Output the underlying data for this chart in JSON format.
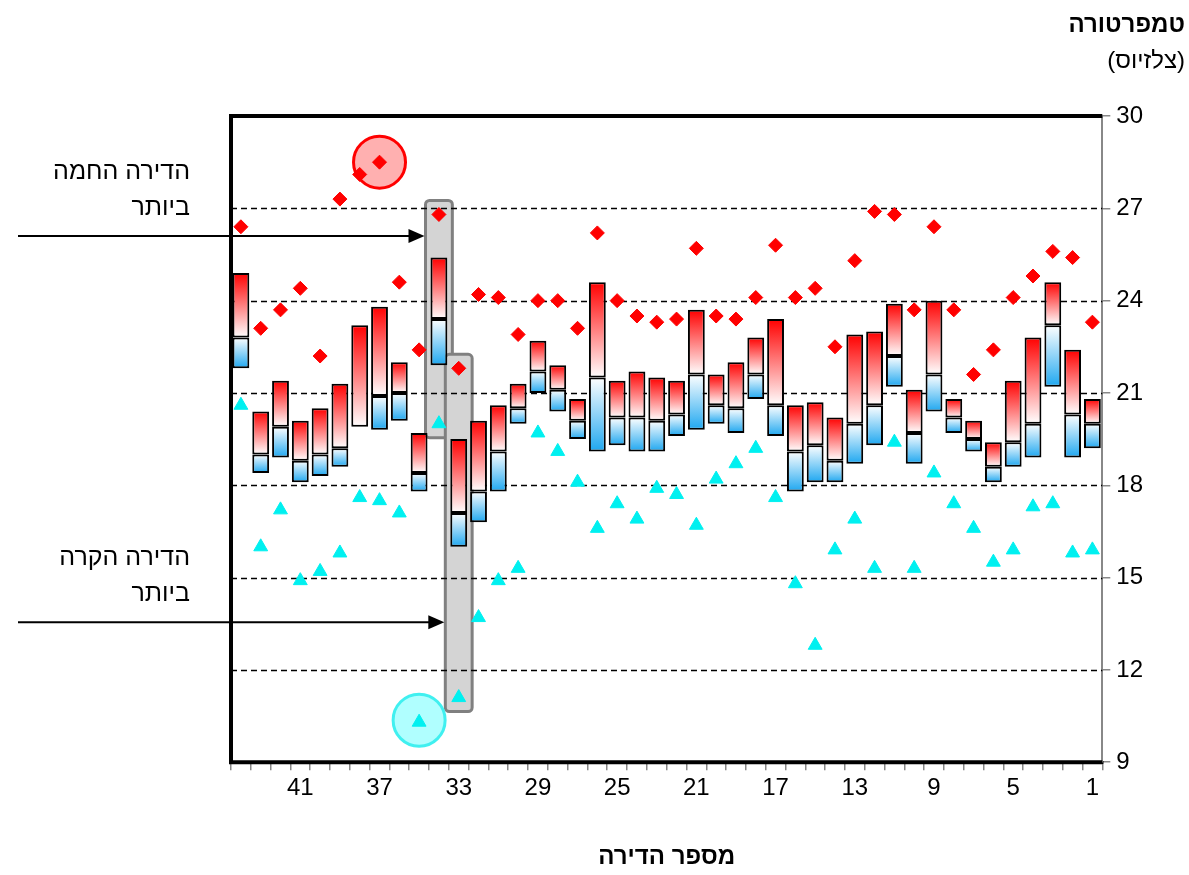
{
  "chart_data": {
    "type": "box",
    "xlabel": "מספר הדירה",
    "ylabel": "טמפרטורה\n(צלזיוס)",
    "categories": [
      null,
      null,
      null,
      "41",
      null,
      null,
      null,
      "37",
      null,
      null,
      null,
      "33",
      null,
      null,
      null,
      "29",
      null,
      null,
      null,
      "25",
      null,
      null,
      null,
      "21",
      null,
      null,
      null,
      "17",
      null,
      null,
      null,
      "13",
      null,
      null,
      null,
      "9",
      null,
      null,
      null,
      "5",
      null,
      null,
      null,
      "1"
    ],
    "ylim": [
      9,
      30
    ],
    "yticks": [
      9,
      12,
      15,
      18,
      21,
      24,
      27,
      30
    ],
    "grid": "y",
    "annotations": [
      "הדירה החמה\nביותר",
      "הדירה הקרה\nביותר"
    ],
    "legend": false,
    "series": [
      {
        "boxes": [
          {
            "low": 21.8,
            "q1": 21.8,
            "median": 22.8,
            "q3": 24.9,
            "high": 24.9
          },
          {
            "low": 18.4,
            "q1": 18.4,
            "median": 19.0,
            "q3": 20.4,
            "high": 20.4
          },
          {
            "low": 18.9,
            "q1": 18.9,
            "median": 19.9,
            "q3": 21.4,
            "high": 21.4
          },
          {
            "low": 18.1,
            "q1": 18.1,
            "median": 18.8,
            "q3": 20.1,
            "high": 20.1
          },
          {
            "low": 18.3,
            "q1": 18.3,
            "median": 19.0,
            "q3": 20.5,
            "high": 20.5
          },
          {
            "low": 18.6,
            "q1": 18.6,
            "median": 19.2,
            "q3": 21.3,
            "high": 21.3
          },
          {
            "low": 19.9,
            "q1": 19.9,
            "median": 19.9,
            "q3": 23.2,
            "high": 23.2
          },
          {
            "low": 19.8,
            "q1": 19.8,
            "median": 20.9,
            "q3": 23.8,
            "high": 23.8
          },
          {
            "low": 20.1,
            "q1": 20.1,
            "median": 21.0,
            "q3": 22.0,
            "high": 22.0
          },
          {
            "low": 17.8,
            "q1": 17.8,
            "median": 18.4,
            "q3": 19.7,
            "high": 19.7
          },
          {
            "low": 21.9,
            "q1": 21.9,
            "median": 23.4,
            "q3": 25.4,
            "high": 25.4
          },
          {
            "low": 16.0,
            "q1": 16.0,
            "median": 17.1,
            "q3": 19.5,
            "high": 19.5
          },
          {
            "low": 16.8,
            "q1": 16.8,
            "median": 17.8,
            "q3": 20.1,
            "high": 20.1
          },
          {
            "low": 17.8,
            "q1": 17.8,
            "median": 19.1,
            "q3": 20.6,
            "high": 20.6
          },
          {
            "low": 20.0,
            "q1": 20.0,
            "median": 20.5,
            "q3": 21.3,
            "high": 21.3
          },
          {
            "low": 21.0,
            "q1": 21.0,
            "median": 21.7,
            "q3": 22.7,
            "high": 22.7
          },
          {
            "low": 20.4,
            "q1": 20.4,
            "median": 21.1,
            "q3": 21.9,
            "high": 21.9
          },
          {
            "low": 19.5,
            "q1": 19.5,
            "median": 20.1,
            "q3": 20.8,
            "high": 20.8
          },
          {
            "low": 19.1,
            "q1": 19.1,
            "median": 21.5,
            "q3": 24.6,
            "high": 24.6
          },
          {
            "low": 19.3,
            "q1": 19.3,
            "median": 20.2,
            "q3": 21.4,
            "high": 21.4
          },
          {
            "low": 19.1,
            "q1": 19.1,
            "median": 20.2,
            "q3": 21.7,
            "high": 21.7
          },
          {
            "low": 19.1,
            "q1": 19.1,
            "median": 20.1,
            "q3": 21.5,
            "high": 21.5
          },
          {
            "low": 19.6,
            "q1": 19.6,
            "median": 20.3,
            "q3": 21.4,
            "high": 21.4
          },
          {
            "low": 19.8,
            "q1": 19.8,
            "median": 21.6,
            "q3": 23.7,
            "high": 23.7
          },
          {
            "low": 20.0,
            "q1": 20.0,
            "median": 20.6,
            "q3": 21.6,
            "high": 21.6
          },
          {
            "low": 19.7,
            "q1": 19.7,
            "median": 20.5,
            "q3": 22.0,
            "high": 22.0
          },
          {
            "low": 20.8,
            "q1": 20.8,
            "median": 21.6,
            "q3": 22.8,
            "high": 22.8
          },
          {
            "low": 19.6,
            "q1": 19.6,
            "median": 20.6,
            "q3": 23.4,
            "high": 23.4
          },
          {
            "low": 17.8,
            "q1": 17.8,
            "median": 19.1,
            "q3": 20.6,
            "high": 20.6
          },
          {
            "low": 18.1,
            "q1": 18.1,
            "median": 19.3,
            "q3": 20.7,
            "high": 20.7
          },
          {
            "low": 18.1,
            "q1": 18.1,
            "median": 18.8,
            "q3": 20.2,
            "high": 20.2
          },
          {
            "low": 18.7,
            "q1": 18.7,
            "median": 20.0,
            "q3": 22.9,
            "high": 22.9
          },
          {
            "low": 19.3,
            "q1": 19.3,
            "median": 20.6,
            "q3": 23.0,
            "high": 23.0
          },
          {
            "low": 21.2,
            "q1": 21.2,
            "median": 22.2,
            "q3": 23.9,
            "high": 23.9
          },
          {
            "low": 18.7,
            "q1": 18.7,
            "median": 19.7,
            "q3": 21.1,
            "high": 21.1
          },
          {
            "low": 20.4,
            "q1": 20.4,
            "median": 21.6,
            "q3": 24.0,
            "high": 24.0
          },
          {
            "low": 19.7,
            "q1": 19.7,
            "median": 20.2,
            "q3": 20.8,
            "high": 20.8
          },
          {
            "low": 19.1,
            "q1": 19.1,
            "median": 19.5,
            "q3": 20.1,
            "high": 20.1
          },
          {
            "low": 18.1,
            "q1": 18.1,
            "median": 18.6,
            "q3": 19.4,
            "high": 19.4
          },
          {
            "low": 18.6,
            "q1": 18.6,
            "median": 19.4,
            "q3": 21.4,
            "high": 21.4
          },
          {
            "low": 18.9,
            "q1": 18.9,
            "median": 20.0,
            "q3": 22.8,
            "high": 22.8
          },
          {
            "low": 21.2,
            "q1": 21.2,
            "median": 23.2,
            "q3": 24.6,
            "high": 24.6
          },
          {
            "low": 18.9,
            "q1": 18.9,
            "median": 20.3,
            "q3": 22.4,
            "high": 22.4
          },
          {
            "low": 19.2,
            "q1": 19.2,
            "median": 20.0,
            "q3": 20.8,
            "high": 20.8
          }
        ]
      },
      {
        "type": "scatter",
        "marker": "diamond",
        "color": "#ff0000",
        "values": [
          26.4,
          23.1,
          23.7,
          24.4,
          22.2,
          27.3,
          28.1,
          28.5,
          24.6,
          22.4,
          26.8,
          21.8,
          24.2,
          24.1,
          22.9,
          24.0,
          24.0,
          23.1,
          26.2,
          24.0,
          23.5,
          23.3,
          23.4,
          25.7,
          23.5,
          23.4,
          24.1,
          25.8,
          24.1,
          24.4,
          22.5,
          25.3,
          26.9,
          26.8,
          23.7,
          26.4,
          23.7,
          21.6,
          22.4,
          24.1,
          24.8,
          25.6,
          25.4,
          23.3
        ]
      },
      {
        "type": "scatter",
        "marker": "triangle",
        "color": "#00f0f0",
        "values": [
          20.6,
          16.0,
          17.2,
          14.9,
          15.2,
          15.8,
          17.6,
          17.5,
          17.1,
          10.3,
          20.0,
          11.1,
          13.7,
          14.9,
          15.3,
          19.7,
          19.1,
          18.1,
          16.6,
          17.4,
          16.9,
          17.9,
          17.7,
          16.7,
          18.2,
          18.7,
          19.2,
          17.6,
          14.8,
          12.8,
          15.9,
          16.9,
          15.3,
          19.4,
          15.3,
          18.4,
          17.4,
          16.6,
          15.5,
          15.9,
          17.3,
          17.4,
          15.8,
          15.9
        ]
      }
    ]
  }
}
